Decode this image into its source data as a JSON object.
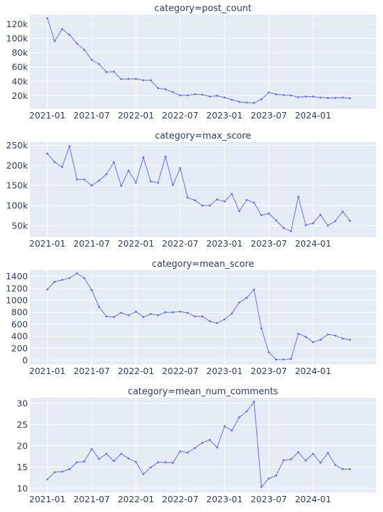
{
  "chart_data": [
    {
      "type": "line",
      "title": "category=post_count",
      "x_ticks": [
        "2021-01",
        "2021-07",
        "2022-01",
        "2022-07",
        "2023-01",
        "2023-07",
        "2024-01"
      ],
      "y_ticks": [
        "20k",
        "40k",
        "60k",
        "80k",
        "100k",
        "120k"
      ],
      "y_tick_values": [
        20000,
        40000,
        60000,
        80000,
        100000,
        120000
      ],
      "ylim": [
        2000,
        133000
      ],
      "values": [
        128000,
        96000,
        113000,
        105000,
        93000,
        84000,
        70000,
        64000,
        53000,
        53500,
        43000,
        43500,
        43500,
        41500,
        41500,
        30500,
        29000,
        25000,
        20500,
        20500,
        22000,
        21500,
        19000,
        20000,
        17500,
        14500,
        11500,
        10500,
        10000,
        15000,
        24500,
        22000,
        21000,
        20500,
        18000,
        19000,
        19000,
        17500,
        17000,
        17000,
        17500,
        16500
      ]
    },
    {
      "type": "line",
      "title": "category=max_score",
      "x_ticks": [
        "2021-01",
        "2021-07",
        "2022-01",
        "2022-07",
        "2023-01",
        "2023-07",
        "2024-01"
      ],
      "y_ticks": [
        "50k",
        "100k",
        "150k",
        "200k",
        "250k"
      ],
      "y_tick_values": [
        50000,
        100000,
        150000,
        200000,
        250000
      ],
      "ylim": [
        22000,
        258000
      ],
      "values": [
        229000,
        208000,
        196000,
        248000,
        165000,
        165000,
        150000,
        162000,
        178000,
        208000,
        149000,
        187000,
        157000,
        220000,
        160000,
        157000,
        222000,
        151000,
        193000,
        120000,
        113000,
        100000,
        100000,
        115000,
        110000,
        129000,
        86000,
        114000,
        107000,
        76000,
        80000,
        63000,
        44000,
        36000,
        122000,
        51000,
        56000,
        77000,
        50000,
        61000,
        85000,
        62000
      ]
    },
    {
      "type": "line",
      "title": "category=mean_score",
      "x_ticks": [
        "2021-01",
        "2021-07",
        "2022-01",
        "2022-07",
        "2023-01",
        "2023-07",
        "2024-01"
      ],
      "y_ticks": [
        "0",
        "200",
        "400",
        "600",
        "800",
        "1000",
        "1200",
        "1400"
      ],
      "y_tick_values": [
        0,
        200,
        400,
        600,
        800,
        1000,
        1200,
        1400
      ],
      "ylim": [
        -70,
        1500
      ],
      "values": [
        1180,
        1310,
        1340,
        1370,
        1450,
        1370,
        1170,
        890,
        730,
        720,
        790,
        750,
        810,
        720,
        770,
        750,
        800,
        800,
        810,
        790,
        730,
        730,
        650,
        620,
        680,
        780,
        960,
        1040,
        1180,
        530,
        130,
        10,
        10,
        20,
        440,
        390,
        300,
        340,
        430,
        410,
        360,
        340
      ]
    },
    {
      "type": "line",
      "title": "category=mean_num_comments",
      "x_ticks": [
        "2021-01",
        "2021-07",
        "2022-01",
        "2022-07",
        "2023-01",
        "2023-07",
        "2024-01"
      ],
      "y_ticks": [
        "10",
        "15",
        "20",
        "25",
        "30"
      ],
      "y_tick_values": [
        10,
        15,
        20,
        25,
        30
      ],
      "ylim": [
        9,
        31.3
      ],
      "values": [
        12.1,
        13.8,
        13.9,
        14.5,
        16.1,
        16.3,
        19.2,
        16.9,
        18.1,
        16.4,
        18.1,
        17.0,
        16.2,
        13.3,
        14.9,
        16.1,
        16.1,
        16.0,
        18.7,
        18.4,
        19.5,
        20.7,
        21.4,
        19.6,
        24.6,
        23.6,
        26.7,
        28.1,
        30.4,
        10.3,
        12.3,
        13.0,
        16.6,
        16.8,
        18.5,
        16.5,
        18.1,
        16.0,
        18.3,
        15.5,
        14.5,
        14.5
      ]
    }
  ],
  "colors": {
    "line": "#636efa",
    "plot_bg": "#e5ecf6",
    "grid": "#ffffff",
    "text": "#2a3f5f"
  }
}
